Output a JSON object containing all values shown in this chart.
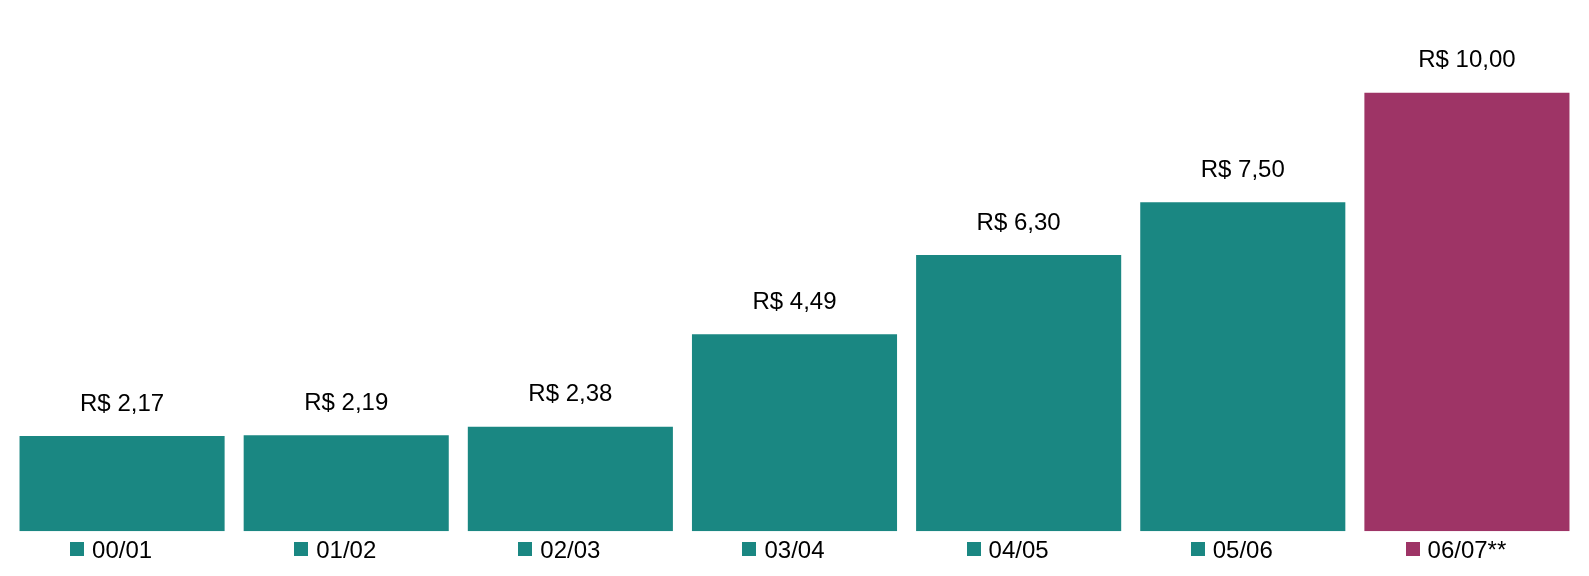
{
  "chart_data": {
    "type": "bar",
    "categories": [
      "00/01",
      "01/02",
      "02/03",
      "03/04",
      "04/05",
      "05/06",
      "06/07**"
    ],
    "values": [
      2.17,
      2.19,
      2.38,
      4.49,
      6.3,
      7.5,
      10.0
    ],
    "value_labels": [
      "R$ 2,17",
      "R$ 2,19",
      "R$ 2,38",
      "R$ 4,49",
      "R$ 6,30",
      "R$ 7,50",
      "R$ 10,00"
    ],
    "colors": [
      "#1a8782",
      "#1a8782",
      "#1a8782",
      "#1a8782",
      "#1a8782",
      "#1a8782",
      "#9e3466"
    ],
    "tick_labels": "x"
  }
}
